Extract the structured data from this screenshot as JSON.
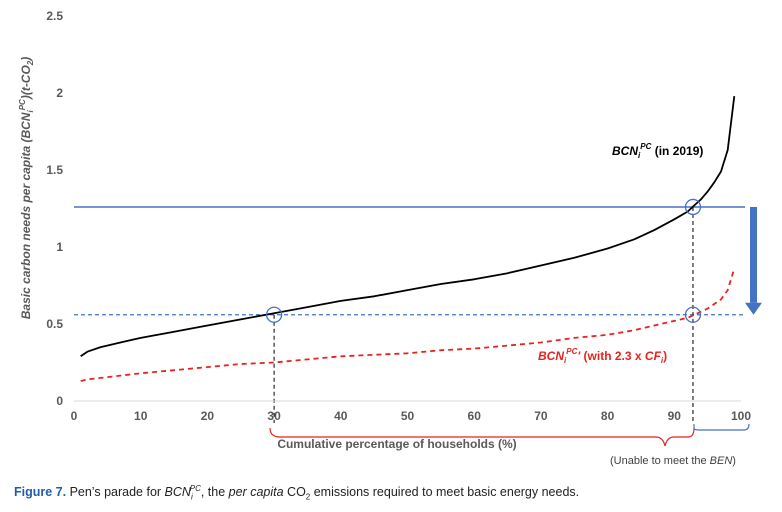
{
  "chart_data": {
    "type": "line",
    "xlabel": "Cumulative percentage of households (%)",
    "ylabel": "Basic carbon needs per capita (BCNiPC)(t-CO2)",
    "xlim": [
      0,
      100
    ],
    "ylim": [
      0,
      2.5
    ],
    "x_ticks": [
      "0",
      "10",
      "20",
      "30",
      "40",
      "50",
      "60",
      "70",
      "80",
      "90",
      "100"
    ],
    "y_ticks": [
      "0",
      "0.5",
      "1",
      "1.5",
      "2",
      "2.5"
    ],
    "grid": false,
    "series": [
      {
        "name": "BCNiPC (in 2019)",
        "color": "#000000",
        "style": "solid",
        "x": [
          1,
          2,
          4,
          6,
          8,
          10,
          15,
          20,
          25,
          30,
          35,
          40,
          45,
          50,
          55,
          60,
          65,
          70,
          75,
          80,
          84,
          87,
          90,
          92,
          93,
          94,
          95,
          96,
          97,
          98,
          99
        ],
        "y": [
          0.29,
          0.32,
          0.35,
          0.37,
          0.39,
          0.41,
          0.45,
          0.49,
          0.53,
          0.57,
          0.61,
          0.65,
          0.68,
          0.72,
          0.76,
          0.79,
          0.83,
          0.88,
          0.93,
          0.99,
          1.05,
          1.11,
          1.18,
          1.23,
          1.27,
          1.31,
          1.36,
          1.42,
          1.49,
          1.63,
          1.98
        ]
      },
      {
        "name": "BCNiPC' (with 2.3 x CFi)",
        "color": "#e8231f",
        "style": "dashed",
        "x": [
          1,
          2,
          4,
          6,
          8,
          10,
          15,
          20,
          25,
          30,
          35,
          40,
          45,
          50,
          55,
          60,
          65,
          70,
          75,
          80,
          84,
          87,
          90,
          92,
          93,
          94,
          95,
          96,
          97,
          98,
          99
        ],
        "y": [
          0.13,
          0.14,
          0.15,
          0.16,
          0.17,
          0.18,
          0.2,
          0.22,
          0.24,
          0.25,
          0.27,
          0.29,
          0.3,
          0.31,
          0.33,
          0.34,
          0.36,
          0.38,
          0.41,
          0.43,
          0.46,
          0.49,
          0.52,
          0.54,
          0.56,
          0.58,
          0.6,
          0.63,
          0.66,
          0.72,
          0.86
        ]
      }
    ],
    "reference_lines": [
      {
        "y": 1.26,
        "color": "#4472c4",
        "style": "solid"
      },
      {
        "y": 0.56,
        "color": "#4472c4",
        "style": "dashed"
      }
    ],
    "markers": [
      {
        "x": 30,
        "y": 0.56
      },
      {
        "x": 92.8,
        "y": 1.26
      },
      {
        "x": 92.8,
        "y": 0.56
      }
    ],
    "vertical_guides": [
      {
        "x": 30,
        "from": 0,
        "to": 0.56
      },
      {
        "x": 92.8,
        "from": 0,
        "to": 1.26
      }
    ],
    "annotations": {
      "black_label": {
        "main": "BCN",
        "sub": "i",
        "sup": "PC",
        "rest": " (in 2019)"
      },
      "red_label": {
        "main": "BCN",
        "sub": "i",
        "sup": "PC",
        "prime": "'",
        "rest": " (with 2.3 x ",
        "cf": "CF",
        "cf_sub": "i",
        "close": ")"
      },
      "unable_note": {
        "prefix": "(Unable to meet the ",
        "em": "BEN",
        "suffix": ")"
      }
    },
    "arrow": {
      "from_y": 1.26,
      "to_y": 0.56,
      "color": "#4472c4"
    },
    "colors": {
      "tick_text": "#595959",
      "brace": "#e8231f",
      "blue": "#4472c4"
    }
  },
  "caption": {
    "lead": "Figure 7.",
    "t1": " Pen’s parade for ",
    "bcn": "BCN",
    "bcn_sub": "i",
    "bcn_sup": "PC",
    "t2": ", the ",
    "em": "per capita",
    "t3": " CO",
    "co2_sub": "2",
    "t4": " emissions required to meet basic energy needs."
  }
}
